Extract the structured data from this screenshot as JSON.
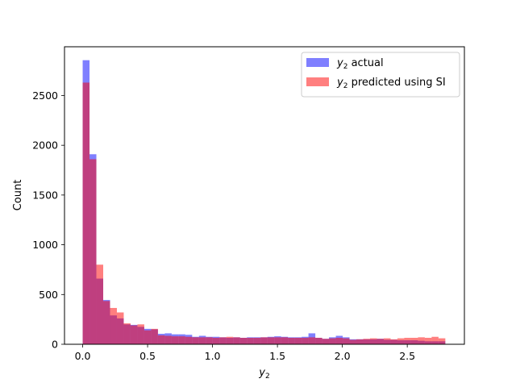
{
  "chart_data": {
    "type": "histogram",
    "xlabel": "y₂",
    "ylabel": "Count",
    "xlim": [
      -0.14,
      2.94
    ],
    "ylim": [
      0,
      2990
    ],
    "grid": false,
    "legend_position": "top-right",
    "x_ticks": [
      {
        "value": 0.0,
        "label": "0.0"
      },
      {
        "value": 0.5,
        "label": "0.5"
      },
      {
        "value": 1.0,
        "label": "1.0"
      },
      {
        "value": 1.5,
        "label": "1.5"
      },
      {
        "value": 2.0,
        "label": "2.0"
      },
      {
        "value": 2.5,
        "label": "2.5"
      }
    ],
    "y_ticks": [
      {
        "value": 0,
        "label": "0"
      },
      {
        "value": 500,
        "label": "500"
      },
      {
        "value": 1000,
        "label": "1000"
      },
      {
        "value": 1500,
        "label": "1500"
      },
      {
        "value": 2000,
        "label": "2000"
      },
      {
        "value": 2500,
        "label": "2500"
      }
    ],
    "series": [
      {
        "name": "y₂ actual",
        "legend_main": "y",
        "legend_sub": "2",
        "legend_suffix": " actual",
        "color": "#0000ff",
        "opacity": 0.5,
        "bin_start": 0.0,
        "bin_width": 0.0527,
        "values": [
          2855,
          1910,
          660,
          445,
          290,
          260,
          200,
          195,
          175,
          155,
          150,
          105,
          110,
          100,
          100,
          95,
          75,
          85,
          75,
          75,
          70,
          65,
          70,
          65,
          70,
          70,
          70,
          75,
          80,
          75,
          70,
          70,
          75,
          110,
          65,
          55,
          70,
          85,
          70,
          50,
          50,
          50,
          50,
          55,
          45,
          45,
          40,
          40,
          40,
          35,
          30,
          30,
          30
        ]
      },
      {
        "name": "y₂ predicted using SI",
        "legend_main": "y",
        "legend_sub": "2",
        "legend_suffix": " predicted using SI",
        "color": "#ff0000",
        "opacity": 0.5,
        "bin_start": 0.0,
        "bin_width": 0.0527,
        "values": [
          2630,
          1860,
          800,
          435,
          365,
          320,
          210,
          190,
          200,
          140,
          155,
          90,
          85,
          80,
          80,
          75,
          70,
          70,
          70,
          65,
          70,
          75,
          70,
          65,
          65,
          65,
          70,
          70,
          70,
          70,
          65,
          65,
          65,
          70,
          65,
          55,
          60,
          65,
          60,
          45,
          50,
          55,
          60,
          55,
          60,
          50,
          60,
          65,
          65,
          70,
          65,
          75,
          60
        ]
      }
    ]
  }
}
